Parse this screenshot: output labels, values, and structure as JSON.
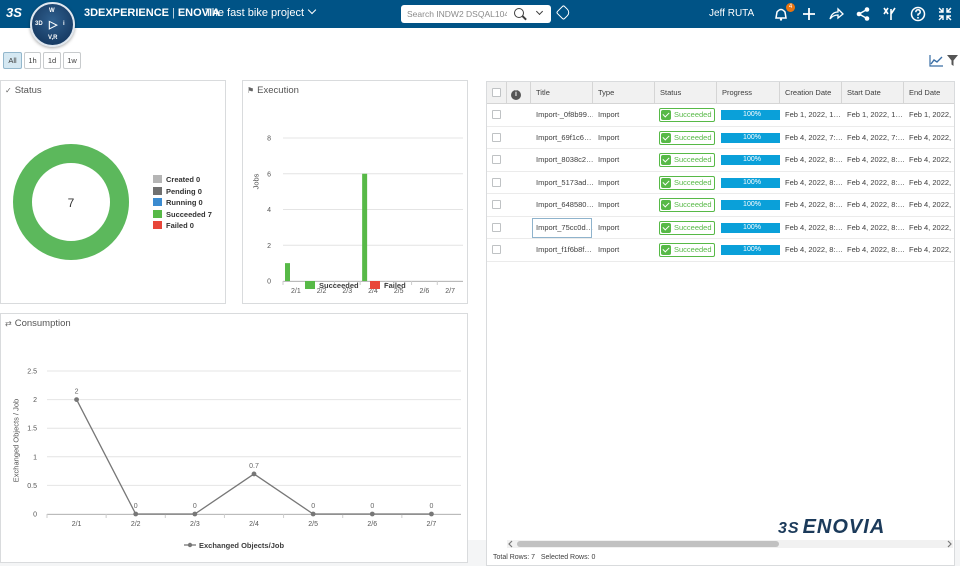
{
  "header": {
    "brand_3dx": "3DEXPERIENCE",
    "brand_app": "ENOVIA",
    "brand_sep": "|",
    "context": "The fast bike project",
    "search_placeholder": "Search INDW2 DSQAL104",
    "user": "Jeff RUTA",
    "notification_count": "4",
    "logo_glyph": "3S",
    "compass_labels": {
      "top": "W",
      "left": "3D",
      "play": "▷",
      "right": "i",
      "bottom": "V,R"
    },
    "icons": [
      "ds-logo-icon",
      "compass-icon",
      "chevron-down-icon",
      "search-icon",
      "tag-icon",
      "notifications-icon",
      "add-icon",
      "share-icon",
      "network-icon",
      "apps-icon",
      "help-icon",
      "fullscreen-icon"
    ]
  },
  "time_filters": [
    "All",
    "1h",
    "1d",
    "1w"
  ],
  "active_filter": "All",
  "status_panel": {
    "title": "Status",
    "center_value": "7",
    "legend": [
      {
        "label": "Created",
        "count": "0",
        "color": "#b5b5b5"
      },
      {
        "label": "Pending",
        "count": "0",
        "color": "#707070"
      },
      {
        "label": "Running",
        "count": "0",
        "color": "#3b8bd0"
      },
      {
        "label": "Succeeded",
        "count": "7",
        "color": "#57b947"
      },
      {
        "label": "Failed",
        "count": "0",
        "color": "#e8463a"
      }
    ]
  },
  "execution_panel": {
    "title": "Execution",
    "ylabel": "Jobs",
    "legend": [
      {
        "label": "Succeeded",
        "color": "#57b947"
      },
      {
        "label": "Failed",
        "color": "#e8463a"
      }
    ]
  },
  "consumption_panel": {
    "title": "Consumption",
    "ylabel": "Exchanged Objects / Job",
    "legend": "Exchanged Objects/Job"
  },
  "chart_data": [
    {
      "type": "pie",
      "title": "Status",
      "categories": [
        "Created",
        "Pending",
        "Running",
        "Succeeded",
        "Failed"
      ],
      "values": [
        0,
        0,
        0,
        7,
        0
      ],
      "center_label": "7"
    },
    {
      "type": "bar",
      "title": "Execution",
      "categories": [
        "2/1",
        "2/2",
        "2/3",
        "2/4",
        "2/5",
        "2/6",
        "2/7"
      ],
      "series": [
        {
          "name": "Succeeded",
          "values": [
            1,
            0,
            0,
            6,
            0,
            0,
            0
          ]
        },
        {
          "name": "Failed",
          "values": [
            0,
            0,
            0,
            0,
            0,
            0,
            0
          ]
        }
      ],
      "ylabel": "Jobs",
      "ylim": [
        0,
        8
      ],
      "yticks": [
        0,
        2,
        4,
        6,
        8
      ],
      "grid": true,
      "legend_position": "bottom"
    },
    {
      "type": "line",
      "title": "Consumption",
      "categories": [
        "2/1",
        "2/2",
        "2/3",
        "2/4",
        "2/5",
        "2/6",
        "2/7"
      ],
      "series": [
        {
          "name": "Exchanged Objects/Job",
          "values": [
            2,
            0,
            0,
            0.7,
            0,
            0,
            0
          ]
        }
      ],
      "data_labels": [
        "2",
        "0",
        "0",
        "0.7",
        "0",
        "0",
        "0"
      ],
      "ylabel": "Exchanged Objects / Job",
      "ylim": [
        0,
        2.5
      ],
      "yticks": [
        "0",
        "0.5",
        "1",
        "1.5",
        "2",
        "2.5"
      ],
      "grid": true,
      "legend_position": "bottom"
    }
  ],
  "table": {
    "columns": [
      "Title",
      "Type",
      "Status",
      "Progress",
      "Creation Date",
      "Start Date",
      "End Date"
    ],
    "rows": [
      {
        "title": "Import-_0f8b99…",
        "type": "Import",
        "status": "Succeeded",
        "progress": "100%",
        "created": "Feb 1, 2022, 1…",
        "start": "Feb 1, 2022, 1…",
        "end": "Feb 1, 2022,"
      },
      {
        "title": "Import_69f1c6…",
        "type": "Import",
        "status": "Succeeded",
        "progress": "100%",
        "created": "Feb 4, 2022, 7:…",
        "start": "Feb 4, 2022, 7:…",
        "end": "Feb 4, 2022,"
      },
      {
        "title": "Import_8038c2…",
        "type": "Import",
        "status": "Succeeded",
        "progress": "100%",
        "created": "Feb 4, 2022, 8:…",
        "start": "Feb 4, 2022, 8:…",
        "end": "Feb 4, 2022,"
      },
      {
        "title": "Import_5173ad…",
        "type": "Import",
        "status": "Succeeded",
        "progress": "100%",
        "created": "Feb 4, 2022, 8:…",
        "start": "Feb 4, 2022, 8:…",
        "end": "Feb 4, 2022,"
      },
      {
        "title": "Import_648580…",
        "type": "Import",
        "status": "Succeeded",
        "progress": "100%",
        "created": "Feb 4, 2022, 8:…",
        "start": "Feb 4, 2022, 8:…",
        "end": "Feb 4, 2022,"
      },
      {
        "title": "Import_75cc0d…",
        "type": "Import",
        "status": "Succeeded",
        "progress": "100%",
        "created": "Feb 4, 2022, 8:…",
        "start": "Feb 4, 2022, 8:…",
        "end": "Feb 4, 2022,"
      },
      {
        "title": "Import_f1f6b8f…",
        "type": "Import",
        "status": "Succeeded",
        "progress": "100%",
        "created": "Feb 4, 2022, 8:…",
        "start": "Feb 4, 2022, 8:…",
        "end": "Feb 4, 2022,"
      }
    ],
    "footer_total": "Total Rows: 7",
    "footer_selected": "Selected Rows: 0",
    "info_glyph": "i"
  },
  "enovia_logo": "ENOVIA",
  "enovia_logo_glyph": "3S"
}
